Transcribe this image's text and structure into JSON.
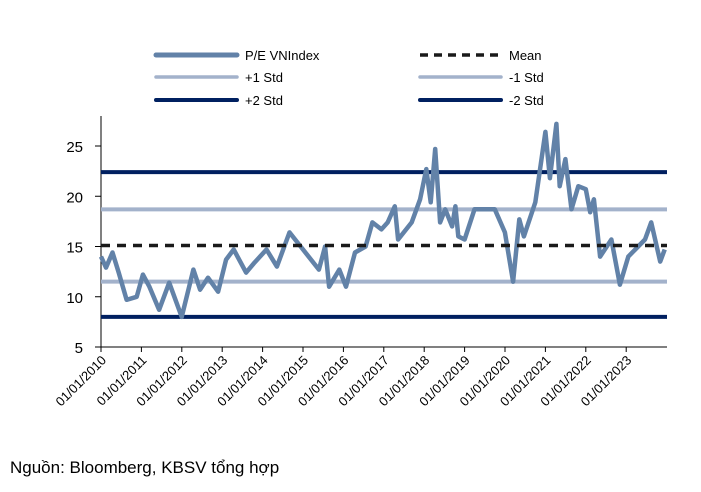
{
  "chart_data": {
    "type": "line",
    "title": "",
    "xlabel": "",
    "ylabel": "",
    "ylim": [
      5,
      28
    ],
    "yticks": [
      5,
      10,
      15,
      20,
      25
    ],
    "xticks": [
      "01/01/2010",
      "01/01/2011",
      "01/01/2012",
      "01/01/2013",
      "01/01/2014",
      "01/01/2015",
      "01/01/2016",
      "01/01/2017",
      "01/01/2018",
      "01/01/2019",
      "01/01/2020",
      "01/01/2021",
      "01/01/2022",
      "01/01/2023"
    ],
    "xlim": [
      "2010-01-01",
      "2023-12-31"
    ],
    "grid": false,
    "legend_placement": "top",
    "colors": {
      "series": "#6282A8",
      "std1": "#A3B2CB",
      "std2": "#002060",
      "mean": "#1a1a1a"
    },
    "series": [
      {
        "name": "P/E VNIndex",
        "values": [
          [
            "2010-01-01",
            14.0
          ],
          [
            "2010-02-15",
            12.9
          ],
          [
            "2010-04-15",
            14.4
          ],
          [
            "2010-06-10",
            12.4
          ],
          [
            "2010-08-20",
            9.7
          ],
          [
            "2010-11-20",
            10.0
          ],
          [
            "2011-01-15",
            12.2
          ],
          [
            "2011-03-15",
            11.0
          ],
          [
            "2011-06-10",
            8.7
          ],
          [
            "2011-09-10",
            11.4
          ],
          [
            "2012-01-01",
            8.0
          ],
          [
            "2012-04-15",
            12.7
          ],
          [
            "2012-06-15",
            10.7
          ],
          [
            "2012-08-25",
            11.9
          ],
          [
            "2012-11-25",
            10.5
          ],
          [
            "2013-02-05",
            13.7
          ],
          [
            "2013-04-15",
            14.7
          ],
          [
            "2013-08-05",
            12.4
          ],
          [
            "2013-10-20",
            13.4
          ],
          [
            "2014-02-05",
            14.7
          ],
          [
            "2014-05-10",
            13.0
          ],
          [
            "2014-09-01",
            16.4
          ],
          [
            "2015-01-01",
            14.7
          ],
          [
            "2015-05-25",
            12.7
          ],
          [
            "2015-07-20",
            15.0
          ],
          [
            "2015-08-25",
            11.0
          ],
          [
            "2015-11-25",
            12.7
          ],
          [
            "2016-01-25",
            11.0
          ],
          [
            "2016-04-15",
            14.4
          ],
          [
            "2016-07-20",
            15.0
          ],
          [
            "2016-09-20",
            17.4
          ],
          [
            "2016-12-10",
            16.7
          ],
          [
            "2017-02-05",
            17.4
          ],
          [
            "2017-04-10",
            19.0
          ],
          [
            "2017-05-10",
            15.7
          ],
          [
            "2017-09-10",
            17.4
          ],
          [
            "2017-11-25",
            19.7
          ],
          [
            "2018-01-20",
            22.7
          ],
          [
            "2018-03-01",
            19.4
          ],
          [
            "2018-04-10",
            24.7
          ],
          [
            "2018-05-25",
            17.4
          ],
          [
            "2018-07-10",
            18.7
          ],
          [
            "2018-09-10",
            17.0
          ],
          [
            "2018-10-10",
            19.0
          ],
          [
            "2018-11-05",
            16.0
          ],
          [
            "2019-01-01",
            15.7
          ],
          [
            "2019-04-01",
            18.7
          ],
          [
            "2019-10-01",
            18.7
          ],
          [
            "2020-01-01",
            16.4
          ],
          [
            "2020-03-15",
            11.5
          ],
          [
            "2020-05-10",
            17.7
          ],
          [
            "2020-06-20",
            16.0
          ],
          [
            "2020-10-01",
            19.4
          ],
          [
            "2021-01-01",
            26.4
          ],
          [
            "2021-02-10",
            21.8
          ],
          [
            "2021-04-10",
            27.2
          ],
          [
            "2021-05-10",
            21.0
          ],
          [
            "2021-07-01",
            23.7
          ],
          [
            "2021-08-25",
            18.7
          ],
          [
            "2021-10-25",
            21.0
          ],
          [
            "2022-01-01",
            20.7
          ],
          [
            "2022-02-10",
            18.4
          ],
          [
            "2022-03-15",
            19.7
          ],
          [
            "2022-05-10",
            14.0
          ],
          [
            "2022-08-20",
            15.7
          ],
          [
            "2022-11-05",
            11.2
          ],
          [
            "2023-01-20",
            14.0
          ],
          [
            "2023-06-20",
            15.7
          ],
          [
            "2023-08-15",
            17.4
          ],
          [
            "2023-11-05",
            13.5
          ],
          [
            "2023-12-15",
            14.7
          ]
        ]
      },
      {
        "name": "Mean",
        "value": 15.1
      },
      {
        "name": "+1 Std",
        "value": 18.7
      },
      {
        "name": "-1 Std",
        "value": 11.5
      },
      {
        "name": "+2 Std",
        "value": 22.4
      },
      {
        "name": "-2 Std",
        "value": 8.0
      }
    ]
  },
  "source": "Nguồn: Bloomberg, KBSV tổng hợp"
}
